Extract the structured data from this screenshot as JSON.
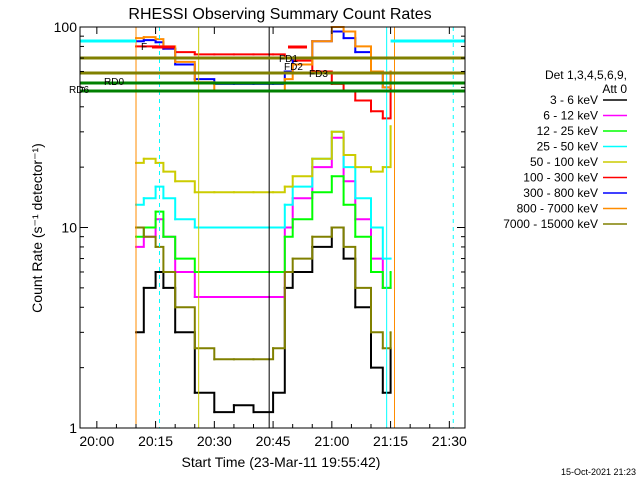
{
  "chart_data": {
    "type": "line",
    "title": "RHESSI Observing Summary Count Rates",
    "xlabel": "Start Time (23-Mar-11 19:55:42)",
    "ylabel": "Count Rate (s⁻¹ detector⁻¹)",
    "y_scale": "log",
    "ylim": [
      1,
      100
    ],
    "xlim": [
      "19:55:42",
      "21:34:00"
    ],
    "x_ticks": [
      "20:00",
      "20:15",
      "20:30",
      "20:45",
      "21:00",
      "21:15",
      "21:30"
    ],
    "y_ticks": [
      "1",
      "10",
      "100"
    ],
    "legend": {
      "position": "right",
      "header_line1": "Det 1,3,4,5,6,9,",
      "header_line2": "Att 0",
      "entries": [
        {
          "label": "3 - 6 keV",
          "color": "#000000"
        },
        {
          "label": "6 - 12 keV",
          "color": "#ff00ff"
        },
        {
          "label": "12 - 25 keV",
          "color": "#00ff00"
        },
        {
          "label": "25 - 50 keV",
          "color": "#00ffff"
        },
        {
          "label": "50 - 100 keV",
          "color": "#cccc00"
        },
        {
          "label": "100 - 300 keV",
          "color": "#ff0000"
        },
        {
          "label": "300 - 800 keV",
          "color": "#0000ff"
        },
        {
          "label": "800 - 7000 keV",
          "color": "#ff8c00"
        },
        {
          "label": "7000 - 15000 keV",
          "color": "#808000"
        }
      ]
    },
    "series": [
      {
        "name": "3 - 6 keV",
        "color": "#000000",
        "x": [
          "20:10",
          "20:12",
          "20:15",
          "20:17",
          "20:20",
          "20:25",
          "20:30",
          "20:35",
          "20:40",
          "20:45",
          "20:48",
          "20:50",
          "20:55",
          "21:00",
          "21:03",
          "21:06",
          "21:10",
          "21:13",
          "21:15"
        ],
        "y": [
          3,
          5,
          6,
          5,
          3,
          1.5,
          1.2,
          1.3,
          1.2,
          1.5,
          5,
          6,
          8,
          10,
          7,
          4,
          2,
          1.5,
          2.5
        ]
      },
      {
        "name": "6 - 12 keV",
        "color": "#ff00ff",
        "x": [
          "20:10",
          "20:12",
          "20:15",
          "20:17",
          "20:20",
          "20:25",
          "20:30",
          "20:35",
          "20:40",
          "20:45",
          "20:48",
          "20:50",
          "20:55",
          "21:00",
          "21:03",
          "21:06",
          "21:10",
          "21:13",
          "21:15"
        ],
        "y": [
          8,
          9,
          11,
          9,
          6,
          4.5,
          4.5,
          4.5,
          4.5,
          4.5,
          10,
          14,
          20,
          28,
          17,
          11,
          7,
          5,
          5
        ]
      },
      {
        "name": "12 - 25 keV",
        "color": "#00ff00",
        "x": [
          "20:10",
          "20:12",
          "20:15",
          "20:17",
          "20:20",
          "20:25",
          "20:30",
          "20:35",
          "20:40",
          "20:45",
          "20:48",
          "20:50",
          "20:55",
          "21:00",
          "21:03",
          "21:06",
          "21:10",
          "21:13",
          "21:15"
        ],
        "y": [
          9,
          10,
          12,
          9,
          7,
          6,
          6,
          6,
          6,
          6,
          9,
          11,
          15,
          18,
          13,
          9,
          6,
          5,
          6
        ]
      },
      {
        "name": "25 - 50 keV",
        "color": "#00ffff",
        "x": [
          "20:10",
          "20:12",
          "20:15",
          "20:17",
          "20:20",
          "20:25",
          "20:30",
          "20:35",
          "20:40",
          "20:45",
          "20:48",
          "20:50",
          "20:55",
          "21:00",
          "21:03",
          "21:06",
          "21:10",
          "21:13",
          "21:15"
        ],
        "y": [
          13,
          14,
          16,
          14,
          11,
          10,
          10,
          10,
          10,
          10,
          13,
          16,
          22,
          30,
          20,
          14,
          10,
          7,
          7
        ]
      },
      {
        "name": "50 - 100 keV",
        "color": "#cccc00",
        "x": [
          "20:10",
          "20:12",
          "20:15",
          "20:17",
          "20:20",
          "20:25",
          "20:30",
          "20:35",
          "20:40",
          "20:45",
          "20:48",
          "20:50",
          "20:55",
          "21:00",
          "21:03",
          "21:06",
          "21:10",
          "21:13",
          "21:15"
        ],
        "y": [
          21,
          22,
          21,
          19,
          17,
          15,
          15,
          15,
          15,
          15,
          16,
          18,
          22,
          30,
          23,
          20,
          19,
          20,
          32
        ]
      },
      {
        "name": "100 - 300 keV",
        "color": "#ff0000",
        "x": [
          "20:10",
          "20:12",
          "20:15",
          "20:17",
          "20:20",
          "20:25",
          "20:30",
          "20:35",
          "20:40",
          "20:45",
          "20:48",
          "20:50",
          "20:55",
          "21:00",
          "21:03",
          "21:06",
          "21:10",
          "21:13",
          "21:15"
        ],
        "y": [
          80,
          80,
          80,
          78,
          75,
          73,
          73,
          73,
          73,
          73,
          70,
          68,
          60,
          52,
          48,
          43,
          38,
          35,
          50
        ]
      },
      {
        "name": "300 - 800 keV",
        "color": "#0000ff",
        "x": [
          "20:10",
          "20:12",
          "20:15",
          "20:17",
          "20:20",
          "20:25",
          "20:30",
          "20:35",
          "20:40",
          "20:45",
          "20:48",
          "20:50",
          "20:55",
          "21:00",
          "21:03",
          "21:06",
          "21:10",
          "21:13",
          "21:15"
        ],
        "y": [
          85,
          86,
          84,
          78,
          65,
          55,
          52,
          52,
          52,
          52,
          60,
          70,
          85,
          95,
          88,
          75,
          60,
          50,
          60
        ]
      },
      {
        "name": "800 - 7000 keV",
        "color": "#ff8c00",
        "x": [
          "20:10",
          "20:12",
          "20:15",
          "20:17",
          "20:20",
          "20:25",
          "20:30",
          "20:35",
          "20:40",
          "20:45",
          "20:48",
          "20:50",
          "20:55",
          "21:00",
          "21:03",
          "21:06",
          "21:10",
          "21:13",
          "21:15"
        ],
        "y": [
          88,
          89,
          87,
          80,
          67,
          53,
          48,
          48,
          48,
          48,
          55,
          65,
          85,
          100,
          95,
          80,
          60,
          50,
          60
        ]
      },
      {
        "name": "7000 - 15000 keV",
        "color": "#808000",
        "x": [
          "20:10",
          "20:12",
          "20:15",
          "20:17",
          "20:20",
          "20:25",
          "20:30",
          "20:35",
          "20:40",
          "20:45",
          "20:48",
          "20:50",
          "20:55",
          "21:00",
          "21:03",
          "21:06",
          "21:10",
          "21:13",
          "21:15"
        ],
        "y": [
          10,
          9,
          8,
          6,
          4,
          2.5,
          2.2,
          2.2,
          2.2,
          2.5,
          6,
          7,
          9,
          10,
          8,
          5,
          3,
          2.5,
          3
        ]
      }
    ],
    "annotations": [
      {
        "text": "F",
        "color": "#ff0000"
      },
      {
        "text": "RD0",
        "color": "#008000"
      },
      {
        "text": "RD6",
        "color": "#008000"
      },
      {
        "text": "FD1",
        "color": "#808000"
      },
      {
        "text": "FD2",
        "color": "#808000"
      },
      {
        "text": "FD3",
        "color": "#808000"
      }
    ],
    "timestamp": "15-Oct-2021 21:23"
  }
}
